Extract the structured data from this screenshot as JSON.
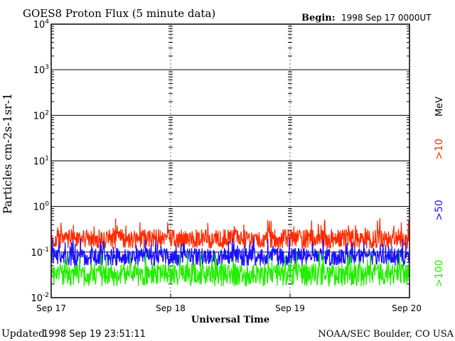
{
  "header": {
    "title": "GOES8 Proton Flux (5 minute data)",
    "begin_label": "Begin:",
    "begin_value": "1998 Sep 17 0000UT"
  },
  "footer": {
    "updated_label": "Updated",
    "updated_value": "1998 Sep 19 23:51:11",
    "credit": "NOAA/SEC Boulder, CO USA"
  },
  "colors": {
    "p10": "#ff2a00",
    "p50": "#1a10ff",
    "p100": "#22ee00",
    "grid": "#000000"
  },
  "chart_data": {
    "type": "line",
    "title": "GOES8 Proton Flux (5 minute data)",
    "xlabel": "Universal Time",
    "ylabel": "Particles cm-2s-1sr-1",
    "y_scale": "log",
    "ylim": [
      0.01,
      10000
    ],
    "y_ticks": [
      {
        "value": 0.01,
        "base": "10",
        "exp": "-2"
      },
      {
        "value": 0.1,
        "base": "10",
        "exp": "-1"
      },
      {
        "value": 1,
        "base": "10",
        "exp": "0"
      },
      {
        "value": 10,
        "base": "10",
        "exp": "1"
      },
      {
        "value": 100,
        "base": "10",
        "exp": "2"
      },
      {
        "value": 1000,
        "base": "10",
        "exp": "3"
      },
      {
        "value": 10000,
        "base": "10",
        "exp": "4"
      }
    ],
    "x_range": [
      "1998-09-17",
      "1998-09-20"
    ],
    "x_ticks": [
      "Sep 17",
      "Sep 18",
      "Sep 19",
      "Sep 20"
    ],
    "units_label": "MeV",
    "series": [
      {
        "name": ">10",
        "color": "#ff2a00",
        "typical": 0.2,
        "min": 0.12,
        "max": 0.55
      },
      {
        "name": ">50",
        "color": "#1a10ff",
        "typical": 0.08,
        "min": 0.05,
        "max": 0.2
      },
      {
        "name": ">100",
        "color": "#22ee00",
        "typical": 0.035,
        "min": 0.018,
        "max": 0.1
      }
    ],
    "points_per_series": 864,
    "grid": true
  }
}
